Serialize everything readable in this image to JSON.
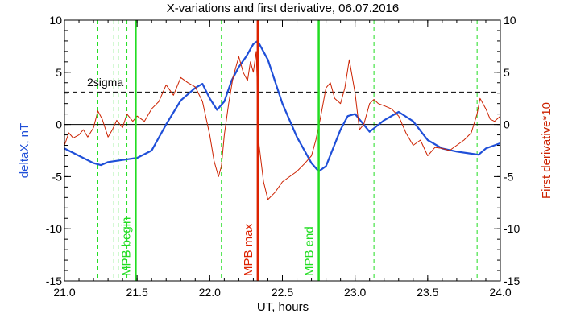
{
  "chart_data": {
    "type": "line",
    "title": "X-variations and first derivative, 06.07.2016",
    "xlabel": "UT, hours",
    "ylabel_left": "deltaX, nT",
    "ylabel_right": "First derivative*10",
    "xlim": [
      21.0,
      24.0
    ],
    "ylim": [
      -15,
      10
    ],
    "x_ticks": [
      "21.0",
      "21.5",
      "22.0",
      "22.5",
      "23.0",
      "23.5",
      "24.0"
    ],
    "y_ticks": [
      "-15",
      "-10",
      "-5",
      "0",
      "5",
      "10"
    ],
    "colors": {
      "deltaX": "#1f4fd8",
      "derivative": "#cc2200",
      "mpb": "#22dd22",
      "mpb_max": "#dd2200",
      "reference": "#000000"
    },
    "threshold": {
      "label": "2sigma",
      "value": 3.1,
      "style": "dashed"
    },
    "zero_line": 0,
    "vertical_markers": [
      {
        "x": 21.49,
        "label": "MPB begin",
        "style": "solid",
        "color": "#22dd22"
      },
      {
        "x": 22.33,
        "label": "MPB max",
        "style": "solid",
        "color": "#dd2200"
      },
      {
        "x": 22.75,
        "label": "MPB end",
        "style": "solid",
        "color": "#22dd22"
      },
      {
        "x": 21.23,
        "style": "dashed"
      },
      {
        "x": 21.34,
        "style": "dashed"
      },
      {
        "x": 21.37,
        "style": "dashed"
      },
      {
        "x": 21.43,
        "style": "dashed"
      },
      {
        "x": 22.08,
        "style": "dashed"
      },
      {
        "x": 23.13,
        "style": "dashed"
      },
      {
        "x": 23.84,
        "style": "dashed"
      }
    ],
    "series": [
      {
        "key": "deltaX",
        "axis": "left",
        "x": [
          21.0,
          21.1,
          21.2,
          21.25,
          21.3,
          21.4,
          21.5,
          21.6,
          21.7,
          21.8,
          21.9,
          21.95,
          22.0,
          22.05,
          22.1,
          22.15,
          22.2,
          22.25,
          22.3,
          22.33,
          22.4,
          22.5,
          22.6,
          22.7,
          22.75,
          22.8,
          22.9,
          22.95,
          23.0,
          23.1,
          23.2,
          23.3,
          23.4,
          23.5,
          23.6,
          23.7,
          23.8,
          23.85,
          23.9,
          24.0
        ],
        "values": [
          -2.3,
          -3.0,
          -3.7,
          -3.9,
          -3.6,
          -3.4,
          -3.2,
          -2.5,
          0.0,
          2.3,
          3.5,
          3.9,
          2.5,
          1.4,
          2.2,
          4.2,
          5.5,
          6.5,
          7.7,
          8.0,
          6.2,
          2.0,
          -1.2,
          -3.7,
          -4.5,
          -4.0,
          -0.5,
          0.8,
          1.0,
          -0.7,
          0.4,
          1.2,
          0.3,
          -1.5,
          -2.3,
          -2.6,
          -2.8,
          -2.9,
          -2.3,
          -1.8
        ]
      },
      {
        "key": "derivative",
        "axis": "right",
        "x": [
          21.0,
          21.03,
          21.06,
          21.1,
          21.13,
          21.16,
          21.2,
          21.23,
          21.26,
          21.3,
          21.33,
          21.36,
          21.4,
          21.43,
          21.47,
          21.5,
          21.55,
          21.6,
          21.65,
          21.7,
          21.75,
          21.8,
          21.85,
          21.9,
          21.95,
          22.0,
          22.03,
          22.06,
          22.08,
          22.1,
          22.13,
          22.16,
          22.2,
          22.23,
          22.26,
          22.28,
          22.3,
          22.32,
          22.34,
          22.37,
          22.4,
          22.45,
          22.5,
          22.55,
          22.6,
          22.65,
          22.7,
          22.73,
          22.76,
          22.8,
          22.83,
          22.86,
          22.9,
          22.93,
          22.96,
          23.0,
          23.03,
          23.06,
          23.1,
          23.13,
          23.16,
          23.2,
          23.25,
          23.3,
          23.35,
          23.4,
          23.45,
          23.5,
          23.55,
          23.6,
          23.65,
          23.7,
          23.75,
          23.8,
          23.84,
          23.86,
          23.9,
          23.93,
          23.96,
          24.0
        ],
        "values": [
          -2.0,
          -0.8,
          -1.3,
          -1.0,
          -0.5,
          -1.2,
          -0.3,
          1.3,
          0.5,
          -1.2,
          -0.5,
          0.4,
          -0.3,
          1.0,
          0.3,
          0.8,
          0.3,
          1.5,
          2.2,
          3.8,
          2.8,
          4.5,
          4.0,
          3.6,
          2.2,
          -1.0,
          -3.5,
          -5.0,
          -4.0,
          -1.0,
          2.0,
          4.5,
          6.5,
          5.0,
          4.2,
          6.0,
          5.0,
          7.0,
          -2.0,
          -5.5,
          -7.2,
          -6.5,
          -5.5,
          -5.0,
          -4.5,
          -3.8,
          -3.0,
          -1.5,
          0.5,
          3.5,
          4.0,
          2.5,
          2.0,
          3.5,
          6.2,
          3.0,
          -0.5,
          0.0,
          2.0,
          2.4,
          2.0,
          1.8,
          1.5,
          0.8,
          -0.8,
          -2.0,
          -1.5,
          -3.0,
          -2.2,
          -2.3,
          -2.5,
          -2.0,
          -1.5,
          -0.8,
          1.0,
          2.5,
          1.5,
          0.5,
          0.3,
          0.8
        ]
      }
    ]
  }
}
